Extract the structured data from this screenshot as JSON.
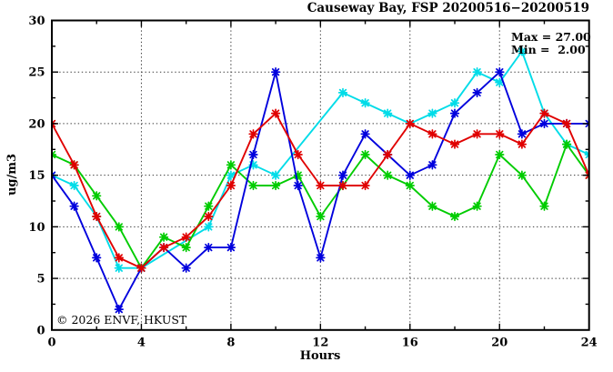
{
  "chart_data": {
    "type": "line",
    "title": "Causeway Bay, FSP 20200516−20200519",
    "xlabel": "Hours",
    "ylabel": "ug/m3",
    "watermark": "© 2026 ENVF, HKUST",
    "annotation": {
      "max_label": "Max = 27.00",
      "min_label": "Min =  2.00"
    },
    "xlim": [
      0,
      24
    ],
    "ylim": [
      0,
      30
    ],
    "xticks": [
      0,
      4,
      8,
      12,
      16,
      20,
      24
    ],
    "yticks": [
      0,
      5,
      10,
      15,
      20,
      25,
      30
    ],
    "x_minor_step": 2,
    "y_minor_step": 2.5,
    "grid": {
      "x": [
        4,
        8,
        12,
        16,
        20
      ],
      "y": [
        5,
        10,
        15,
        20,
        25
      ]
    },
    "legend_position": "none",
    "x": [
      0,
      1,
      2,
      3,
      4,
      5,
      6,
      7,
      8,
      9,
      10,
      11,
      12,
      13,
      14,
      15,
      16,
      17,
      18,
      19,
      20,
      21,
      22,
      23,
      24
    ],
    "series": [
      {
        "name": "cyan",
        "color": "#00dce8",
        "values": [
          15,
          14,
          11,
          6,
          6,
          null,
          null,
          10,
          15,
          16,
          15,
          null,
          null,
          23,
          22,
          21,
          20,
          21,
          22,
          25,
          24,
          27,
          21,
          18,
          17
        ]
      },
      {
        "name": "green",
        "color": "#00cc00",
        "values": [
          17,
          16,
          13,
          10,
          6,
          9,
          8,
          12,
          16,
          14,
          14,
          15,
          11,
          14,
          17,
          15,
          14,
          12,
          11,
          12,
          17,
          15,
          12,
          18,
          15
        ]
      },
      {
        "name": "blue",
        "color": "#0000dd",
        "values": [
          15,
          12,
          7,
          2,
          6,
          8,
          6,
          8,
          8,
          17,
          25,
          14,
          7,
          15,
          19,
          17,
          15,
          16,
          21,
          23,
          25,
          19,
          20,
          20,
          20
        ]
      },
      {
        "name": "red",
        "color": "#e00000",
        "values": [
          20,
          16,
          11,
          7,
          6,
          8,
          9,
          11,
          14,
          19,
          21,
          17,
          14,
          14,
          14,
          17,
          20,
          19,
          18,
          19,
          19,
          18,
          21,
          20,
          15
        ]
      }
    ]
  }
}
